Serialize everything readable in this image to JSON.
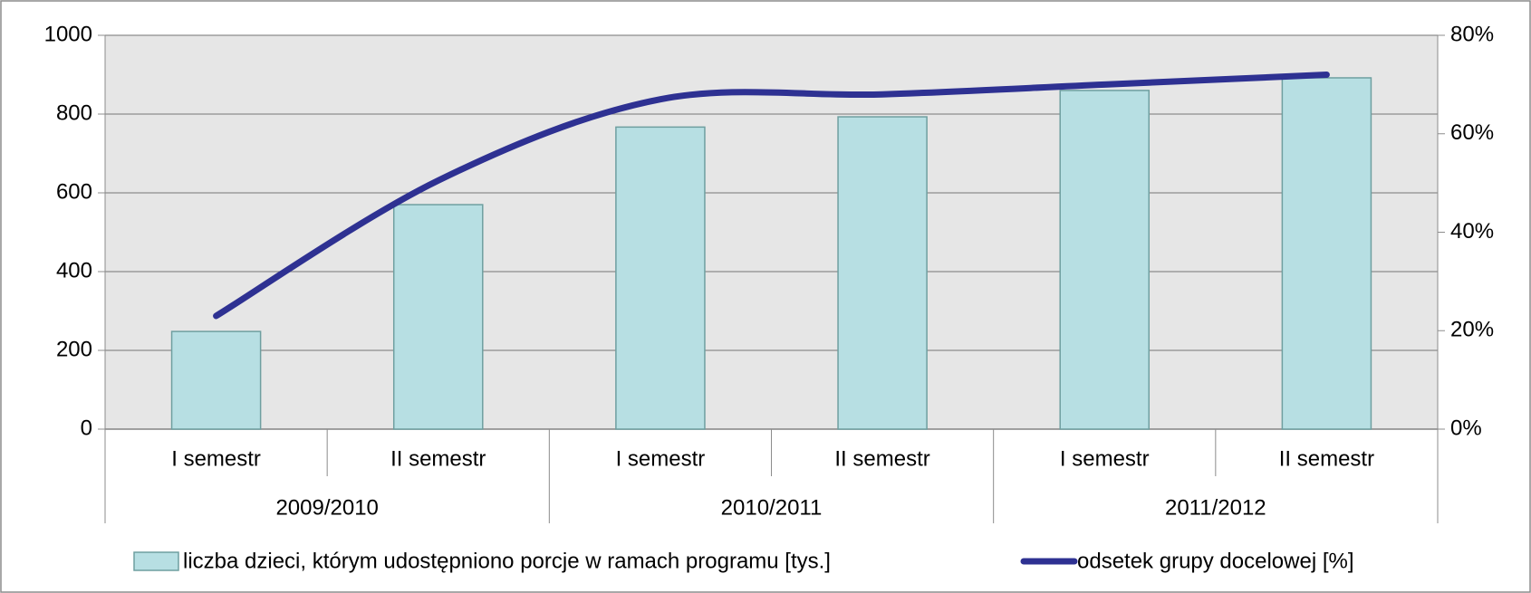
{
  "chart_data": {
    "type": "bar_line",
    "categories": [
      "I semestr",
      "II semestr",
      "I semestr",
      "II semestr",
      "I semestr",
      "II semestr"
    ],
    "groups": [
      "2009/2010",
      "2010/2011",
      "2011/2012"
    ],
    "series": [
      {
        "name": "liczba dzieci, którym udostępniono porcje w ramach programu [tys.]",
        "type": "bar",
        "color": "#b7dfe3",
        "values": [
          248,
          570,
          767,
          793,
          860,
          892
        ]
      },
      {
        "name": "odsetek grupy docelowej [%]",
        "type": "line",
        "axis": "y2",
        "color": "#2e3192",
        "values": [
          23,
          50.5,
          67,
          68,
          70,
          72
        ]
      }
    ],
    "ylim": [
      0,
      1000
    ],
    "yticks": [
      0,
      200,
      400,
      600,
      800,
      1000
    ],
    "y2lim": [
      0,
      80
    ],
    "y2ticks": [
      {
        "value": 0,
        "label": "0%"
      },
      {
        "value": 20,
        "label": "20%"
      },
      {
        "value": 40,
        "label": "40%"
      },
      {
        "value": 60,
        "label": "60%"
      },
      {
        "value": 80,
        "label": "80%"
      }
    ],
    "grid": true,
    "legend": "bottom"
  }
}
